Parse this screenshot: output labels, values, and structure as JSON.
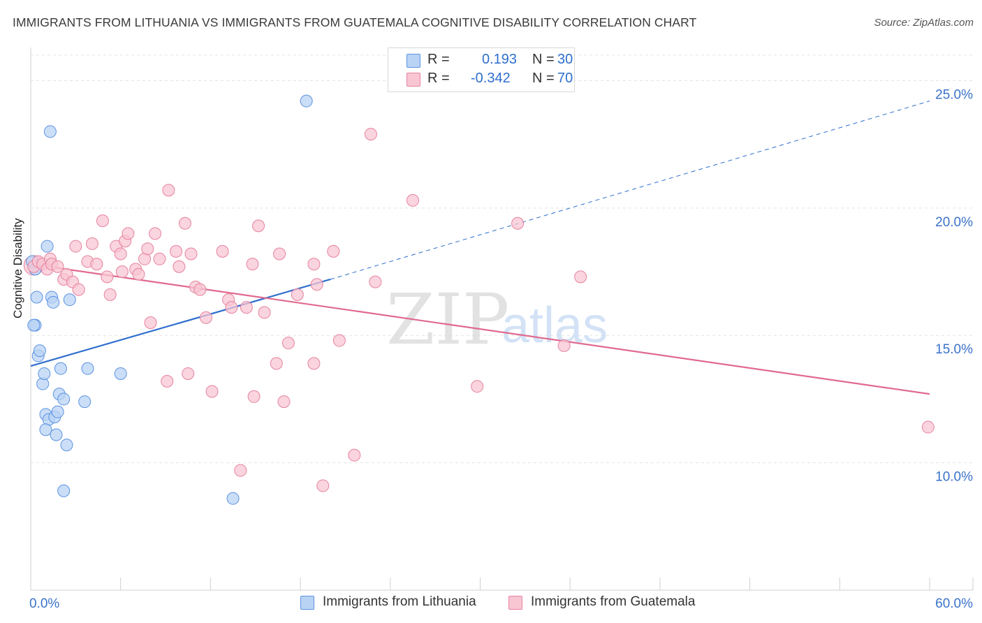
{
  "title": "IMMIGRANTS FROM LITHUANIA VS IMMIGRANTS FROM GUATEMALA COGNITIVE DISABILITY CORRELATION CHART",
  "source": "Source: ZipAtlas.com",
  "watermark": {
    "zip": "ZIP",
    "atlas": "atlas"
  },
  "legend": {
    "lithuania": {
      "r_label": "R =",
      "r_value": "0.193",
      "n_label": "N =",
      "n_value": "30"
    },
    "guatemala": {
      "r_label": "R =",
      "r_value": "-0.342",
      "n_label": "N =",
      "n_value": "70"
    }
  },
  "bottom_legend": {
    "lithuania": "Immigrants from Lithuania",
    "guatemala": "Immigrants from Guatemala"
  },
  "colors": {
    "lithuania_fill": "#b9d3f5",
    "lithuania_stroke": "#5b93e0",
    "lithuania_line": "#2f6fce",
    "guatemala_fill": "#f8c5d3",
    "guatemala_stroke": "#e6829f",
    "guatemala_line": "#e0698f",
    "axis_label": "#3a72c9",
    "grid": "#e4e4e4"
  },
  "chart_data": {
    "type": "scatter",
    "title": "IMMIGRANTS FROM LITHUANIA VS IMMIGRANTS FROM GUATEMALA COGNITIVE DISABILITY CORRELATION CHART",
    "xlabel": "",
    "ylabel": "Cognitive Disability",
    "xlim": [
      0,
      60
    ],
    "ylim": [
      5,
      26
    ],
    "x_tick_labels": [
      "0.0%",
      "60.0%"
    ],
    "y_ticks": [
      10,
      15,
      20,
      25
    ],
    "y_tick_labels": [
      "10.0%",
      "15.0%",
      "20.0%",
      "25.0%"
    ],
    "grid": true,
    "legend_position": "top-center",
    "series": [
      {
        "name": "Immigrants from Lithuania",
        "r": 0.193,
        "n": 30,
        "trend": {
          "x": [
            0,
            20
          ],
          "y": [
            13.8,
            17.2
          ],
          "dashed_extension_to": [
            60,
            24.2
          ]
        },
        "points": [
          [
            0.1,
            17.9
          ],
          [
            0.3,
            17.6
          ],
          [
            0.4,
            16.5
          ],
          [
            0.3,
            15.4
          ],
          [
            0.5,
            14.2
          ],
          [
            0.6,
            14.4
          ],
          [
            0.8,
            13.1
          ],
          [
            0.9,
            13.5
          ],
          [
            1.1,
            18.5
          ],
          [
            1.3,
            23.0
          ],
          [
            1.4,
            16.5
          ],
          [
            1.5,
            16.3
          ],
          [
            1.0,
            11.9
          ],
          [
            1.2,
            11.7
          ],
          [
            1.6,
            11.8
          ],
          [
            1.8,
            12.0
          ],
          [
            1.0,
            11.3
          ],
          [
            1.7,
            11.1
          ],
          [
            1.9,
            12.7
          ],
          [
            2.0,
            13.7
          ],
          [
            2.2,
            12.5
          ],
          [
            2.4,
            10.7
          ],
          [
            2.6,
            16.4
          ],
          [
            2.2,
            8.9
          ],
          [
            3.8,
            13.7
          ],
          [
            3.6,
            12.4
          ],
          [
            6.0,
            13.5
          ],
          [
            13.5,
            8.6
          ],
          [
            18.4,
            24.2
          ],
          [
            0.2,
            15.4
          ]
        ]
      },
      {
        "name": "Immigrants from Guatemala",
        "r": -0.342,
        "n": 70,
        "trend": {
          "x": [
            0,
            60
          ],
          "y": [
            17.8,
            12.7
          ]
        },
        "points": [
          [
            0.2,
            17.7
          ],
          [
            0.5,
            17.9
          ],
          [
            0.8,
            17.8
          ],
          [
            1.1,
            17.6
          ],
          [
            1.3,
            18.0
          ],
          [
            1.4,
            17.8
          ],
          [
            1.8,
            17.7
          ],
          [
            2.2,
            17.2
          ],
          [
            2.4,
            17.4
          ],
          [
            2.8,
            17.1
          ],
          [
            3.2,
            16.8
          ],
          [
            3.0,
            18.5
          ],
          [
            3.8,
            17.9
          ],
          [
            4.1,
            18.6
          ],
          [
            4.4,
            17.8
          ],
          [
            4.8,
            19.5
          ],
          [
            5.1,
            17.3
          ],
          [
            5.3,
            16.6
          ],
          [
            5.7,
            18.5
          ],
          [
            6.0,
            18.2
          ],
          [
            6.1,
            17.5
          ],
          [
            6.3,
            18.7
          ],
          [
            6.5,
            19.0
          ],
          [
            7.0,
            17.6
          ],
          [
            7.2,
            17.4
          ],
          [
            7.6,
            18.0
          ],
          [
            7.8,
            18.4
          ],
          [
            8.0,
            15.5
          ],
          [
            8.3,
            19.0
          ],
          [
            8.6,
            18.0
          ],
          [
            9.1,
            13.2
          ],
          [
            9.2,
            20.7
          ],
          [
            9.7,
            18.3
          ],
          [
            9.9,
            17.7
          ],
          [
            10.3,
            19.4
          ],
          [
            10.5,
            13.5
          ],
          [
            10.7,
            18.2
          ],
          [
            11.0,
            16.9
          ],
          [
            11.3,
            16.8
          ],
          [
            11.7,
            15.7
          ],
          [
            12.1,
            12.8
          ],
          [
            12.8,
            18.3
          ],
          [
            13.2,
            16.4
          ],
          [
            13.4,
            16.1
          ],
          [
            14.0,
            9.7
          ],
          [
            14.4,
            16.1
          ],
          [
            14.8,
            17.8
          ],
          [
            14.9,
            12.6
          ],
          [
            15.2,
            19.3
          ],
          [
            15.6,
            15.9
          ],
          [
            16.4,
            13.9
          ],
          [
            16.6,
            18.2
          ],
          [
            16.9,
            12.4
          ],
          [
            17.2,
            14.7
          ],
          [
            17.8,
            16.6
          ],
          [
            18.9,
            17.8
          ],
          [
            18.9,
            13.9
          ],
          [
            19.1,
            17.0
          ],
          [
            19.5,
            9.1
          ],
          [
            20.2,
            18.3
          ],
          [
            20.6,
            14.8
          ],
          [
            21.6,
            10.3
          ],
          [
            22.7,
            22.9
          ],
          [
            23.0,
            17.1
          ],
          [
            25.5,
            20.3
          ],
          [
            29.8,
            13.0
          ],
          [
            32.5,
            19.4
          ],
          [
            35.6,
            14.6
          ],
          [
            36.7,
            17.3
          ],
          [
            59.9,
            11.4
          ]
        ]
      }
    ]
  }
}
